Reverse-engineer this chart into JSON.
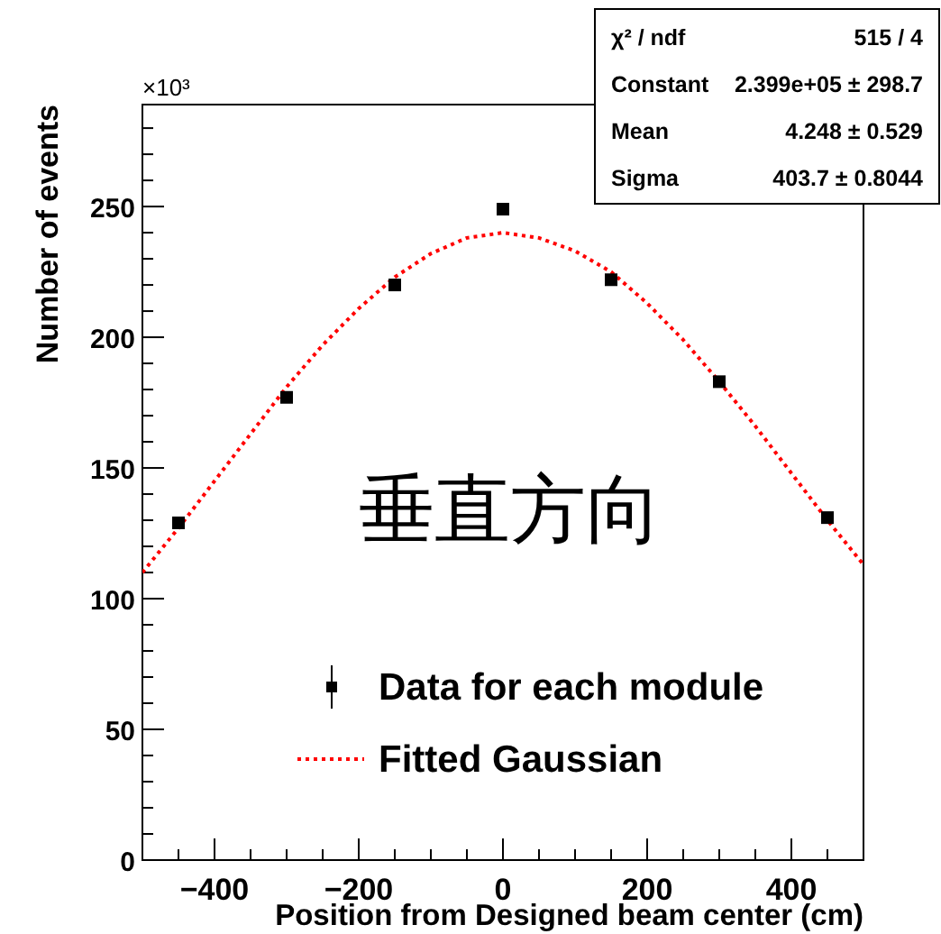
{
  "chart_data": {
    "type": "scatter",
    "xlabel": "Position from Designed beam center (cm)",
    "ylabel": "Number of events",
    "annotations": [
      "×10³",
      "垂直方向",
      "χ² / ndf",
      "515 / 4",
      "Constant",
      "2.399e+05 ± 298.7",
      "Mean",
      "4.248 ± 0.529",
      "Sigma",
      "403.7 ± 0.8044"
    ],
    "xlim": [
      -500,
      500
    ],
    "ylim": [
      0,
      289
    ],
    "xticks": [
      {
        "value": -450,
        "label": null
      },
      {
        "value": -400,
        "label": "−400"
      },
      {
        "value": -350,
        "label": null
      },
      {
        "value": -300,
        "label": null
      },
      {
        "value": -250,
        "label": null
      },
      {
        "value": -200,
        "label": "−200"
      },
      {
        "value": -150,
        "label": null
      },
      {
        "value": -100,
        "label": null
      },
      {
        "value": -50,
        "label": null
      },
      0,
      {
        "value": 50,
        "label": null
      },
      {
        "value": 100,
        "label": null
      },
      {
        "value": 150,
        "label": null
      },
      200,
      {
        "value": 250,
        "label": null
      },
      {
        "value": 300,
        "label": null
      },
      {
        "value": 350,
        "label": null
      },
      400,
      {
        "value": 450,
        "label": null
      }
    ],
    "yticks": [
      0,
      {
        "value": 10,
        "label": null
      },
      {
        "value": 20,
        "label": null
      },
      {
        "value": 30,
        "label": null
      },
      {
        "value": 40,
        "label": null
      },
      50,
      {
        "value": 60,
        "label": null
      },
      {
        "value": 70,
        "label": null
      },
      {
        "value": 80,
        "label": null
      },
      {
        "value": 90,
        "label": null
      },
      100,
      {
        "value": 110,
        "label": null
      },
      {
        "value": 120,
        "label": null
      },
      {
        "value": 130,
        "label": null
      },
      {
        "value": 140,
        "label": null
      },
      150,
      {
        "value": 160,
        "label": null
      },
      {
        "value": 170,
        "label": null
      },
      {
        "value": 180,
        "label": null
      },
      {
        "value": 190,
        "label": null
      },
      200,
      {
        "value": 210,
        "label": null
      },
      {
        "value": 220,
        "label": null
      },
      {
        "value": 230,
        "label": null
      },
      {
        "value": 240,
        "label": null
      },
      250,
      {
        "value": 260,
        "label": null
      },
      {
        "value": 270,
        "label": null
      },
      {
        "value": 280,
        "label": null
      }
    ],
    "legend": "bottom",
    "series": [
      {
        "name": "Data for each module",
        "color": "#000000",
        "marker": "square",
        "x": [
          -450,
          -300,
          -150,
          0,
          150,
          300,
          450
        ],
        "values": [
          129,
          177,
          220,
          249,
          222,
          183,
          131
        ]
      },
      {
        "name": "Fitted Gaussian",
        "type": "line",
        "color": "#ff0000",
        "line_style": "dotted",
        "marker": "none",
        "x": [
          -500,
          -450,
          -400,
          -350,
          -300,
          -250,
          -200,
          -150,
          -100,
          -50,
          0,
          50,
          100,
          150,
          200,
          250,
          300,
          350,
          400,
          450,
          500
        ],
        "values": [
          110,
          127,
          145,
          163,
          181,
          197,
          211,
          223,
          232,
          238,
          240,
          238,
          233,
          225,
          213,
          199,
          183,
          166,
          148,
          130,
          113
        ]
      }
    ]
  }
}
